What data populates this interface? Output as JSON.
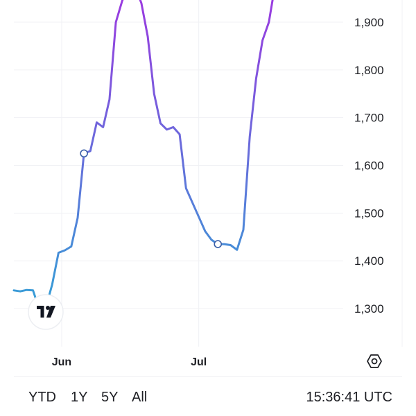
{
  "chart_data": {
    "type": "line",
    "y_ticks": [
      "1,900",
      "1,800",
      "1,700",
      "1,600",
      "1,500",
      "1,400",
      "1,300"
    ],
    "y_tick_values": [
      1900,
      1800,
      1700,
      1600,
      1500,
      1400,
      1300
    ],
    "x_ticks": [
      "Jun",
      "Jul"
    ],
    "series": [
      {
        "line_gradient": [
          "#33a1d6",
          "#9a3be0"
        ],
        "points": [
          {
            "d": 0,
            "y": 1338
          },
          {
            "d": 1,
            "y": 1336
          },
          {
            "d": 2,
            "y": 1339
          },
          {
            "d": 3,
            "y": 1338
          },
          {
            "d": 4,
            "y": 1298
          },
          {
            "d": 5,
            "y": 1302
          },
          {
            "d": 6,
            "y": 1350
          },
          {
            "d": 7,
            "y": 1417
          },
          {
            "d": 8,
            "y": 1422
          },
          {
            "d": 9,
            "y": 1430
          },
          {
            "d": 10,
            "y": 1490
          },
          {
            "d": 11,
            "y": 1625
          },
          {
            "d": 12,
            "y": 1630
          },
          {
            "d": 13,
            "y": 1690
          },
          {
            "d": 14,
            "y": 1680
          },
          {
            "d": 15,
            "y": 1738
          },
          {
            "d": 16,
            "y": 1900
          },
          {
            "d": 17,
            "y": 1945
          },
          {
            "d": 18,
            "y": 1975
          },
          {
            "d": 19,
            "y": 1975
          },
          {
            "d": 20,
            "y": 1940
          },
          {
            "d": 21,
            "y": 1870
          },
          {
            "d": 22,
            "y": 1750
          },
          {
            "d": 23,
            "y": 1688
          },
          {
            "d": 24,
            "y": 1675
          },
          {
            "d": 25,
            "y": 1680
          },
          {
            "d": 26,
            "y": 1665
          },
          {
            "d": 27,
            "y": 1552
          },
          {
            "d": 28,
            "y": 1522
          },
          {
            "d": 29,
            "y": 1492
          },
          {
            "d": 30,
            "y": 1462
          },
          {
            "d": 31,
            "y": 1444
          },
          {
            "d": 32,
            "y": 1435
          },
          {
            "d": 33,
            "y": 1435
          },
          {
            "d": 34,
            "y": 1433
          },
          {
            "d": 35,
            "y": 1423
          },
          {
            "d": 36,
            "y": 1465
          },
          {
            "d": 37,
            "y": 1660
          },
          {
            "d": 38,
            "y": 1782
          },
          {
            "d": 39,
            "y": 1862
          },
          {
            "d": 40,
            "y": 1900
          },
          {
            "d": 41,
            "y": 1980
          }
        ],
        "markers": [
          {
            "d": 11,
            "y": 1625
          },
          {
            "d": 32,
            "y": 1435
          }
        ]
      }
    ],
    "x_tick_positions": [
      7.5,
      29
    ],
    "grid": true,
    "ylim": [
      1220,
      1950
    ]
  },
  "toolbar": {
    "range_buttons": [
      "YTD",
      "1Y",
      "5Y",
      "All"
    ],
    "clock": "15:36:41 UTC"
  },
  "icons": {
    "settings": "gear-hexagon-icon",
    "logo": "tradingview-logo-icon"
  },
  "colors": {
    "grid": "#f0f1f4",
    "text": "#1e1f24",
    "line_start": "#33a1d6",
    "line_end": "#9a3be0",
    "marker": "#3a5fa8"
  }
}
